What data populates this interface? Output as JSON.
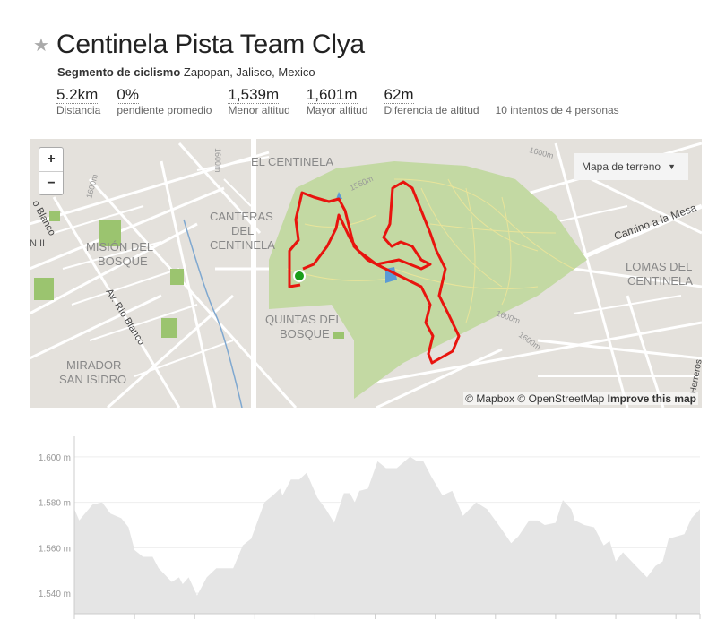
{
  "segment": {
    "title": "Centinela Pista Team Clya",
    "type": "Segmento de ciclismo",
    "location": "Zapopan, Jalisco, Mexico",
    "stats": [
      {
        "value": "5.2km",
        "label": "Distancia"
      },
      {
        "value": "0%",
        "label": "pendiente promedio"
      },
      {
        "value": "1,539m",
        "label": "Menor altitud"
      },
      {
        "value": "1,601m",
        "label": "Mayor altitud"
      },
      {
        "value": "62m",
        "label": "Diferencia de altitud"
      }
    ],
    "attempts": "10 intentos de 4 personas"
  },
  "map": {
    "zoom_in": "+",
    "zoom_out": "−",
    "layer_select": "Mapa de terreno",
    "attribution_mapbox": "© Mapbox",
    "attribution_osm": "© OpenStreetMap",
    "improve": "Improve this map",
    "labels": {
      "el_centinela": "EL CENTINELA",
      "canteras1": "CANTERAS",
      "canteras2": "DEL",
      "canteras3": "CENTINELA",
      "mision1": "MISIÓN DEL",
      "mision2": "BOSQUE",
      "quintas1": "QUINTAS DEL",
      "quintas2": "BOSQUE",
      "mirador1": "MIRADOR",
      "mirador2": "SAN ISIDRO",
      "lomas1": "LOMAS DEL",
      "lomas2": "CENTINELA",
      "rio_blanco": "Av. Río Blanco",
      "rio_blanco_2": "o Blanco",
      "camino": "Camino a la Mesa",
      "herreros": "Herreros",
      "n_ii": "N II",
      "c1600a": "1600m",
      "c1600b": "1600m",
      "c1550": "1550m",
      "c1600c": "1600m",
      "c1600d": "1600m",
      "c1600e": "1600m"
    },
    "colors": {
      "route": "#e8140e",
      "park": "#c3d9a3",
      "start": "#1a9e1a",
      "water": "#5b9bd5"
    }
  },
  "chart_data": {
    "type": "area",
    "title": "",
    "xlabel": "",
    "ylabel": "",
    "yticks": [
      "1.540 m",
      "1.560 m",
      "1.580 m",
      "1.600 m"
    ],
    "ytick_values": [
      1540,
      1560,
      1580,
      1600
    ],
    "ylim": [
      1531,
      1609
    ],
    "xlim": [
      0,
      5.2
    ],
    "xticks_km": [
      0,
      0.5,
      1,
      1.5,
      2,
      2.5,
      3,
      3.5,
      4,
      4.5,
      5
    ],
    "grid": true,
    "fill_color": "#e5e5e5",
    "x": [
      0,
      0.04,
      0.15,
      0.23,
      0.3,
      0.39,
      0.45,
      0.5,
      0.57,
      0.65,
      0.7,
      0.81,
      0.87,
      0.9,
      0.95,
      1.02,
      1.1,
      1.18,
      1.32,
      1.4,
      1.47,
      1.58,
      1.65,
      1.71,
      1.73,
      1.8,
      1.87,
      1.93,
      2.02,
      2.09,
      2.16,
      2.24,
      2.29,
      2.33,
      2.37,
      2.44,
      2.52,
      2.59,
      2.68,
      2.79,
      2.85,
      2.9,
      2.97,
      3.06,
      3.14,
      3.23,
      3.34,
      3.43,
      3.54,
      3.63,
      3.69,
      3.78,
      3.85,
      3.91,
      4.0,
      4.06,
      4.13,
      4.16,
      4.24,
      4.32,
      4.4,
      4.45,
      4.5,
      4.56,
      4.65,
      4.76,
      4.83,
      4.89,
      4.94,
      5.07,
      5.13,
      5.2
    ],
    "y": [
      1577,
      1572,
      1579,
      1580,
      1575,
      1573,
      1569,
      1559,
      1556,
      1556,
      1551,
      1545,
      1547,
      1544,
      1547,
      1539,
      1547,
      1551,
      1551,
      1561,
      1564,
      1580,
      1583,
      1586,
      1583,
      1590,
      1590,
      1593,
      1582,
      1577,
      1571,
      1584,
      1584,
      1580,
      1585,
      1586,
      1598,
      1595,
      1595,
      1600,
      1598,
      1598,
      1591,
      1583,
      1585,
      1574,
      1580,
      1577,
      1569,
      1562,
      1565,
      1572,
      1572,
      1570,
      1571,
      1581,
      1577,
      1572,
      1570,
      1569,
      1561,
      1563,
      1554,
      1558,
      1553,
      1547,
      1552,
      1554,
      1564,
      1566,
      1573,
      1577
    ]
  }
}
